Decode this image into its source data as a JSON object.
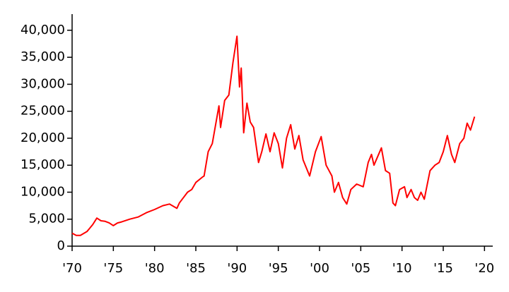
{
  "chart_data": {
    "type": "line",
    "x": [
      1970,
      1970.5,
      1971,
      1971.8,
      1972.5,
      1973.0,
      1973.5,
      1974.0,
      1974.5,
      1975.0,
      1975.5,
      1976,
      1977,
      1978,
      1979,
      1980,
      1981,
      1981.8,
      1982.7,
      1983,
      1984,
      1984.5,
      1985,
      1985.8,
      1986,
      1986.5,
      1987,
      1987.8,
      1988.0,
      1988.5,
      1989.0,
      1989.5,
      1989.99,
      1990.3,
      1990.5,
      1990.8,
      1991.2,
      1991.6,
      1992,
      1992.6,
      1993,
      1993.5,
      1994,
      1994.5,
      1995,
      1995.5,
      1996,
      1996.5,
      1997,
      1997.5,
      1998,
      1998.8,
      1999.5,
      2000.2,
      2000.8,
      2001.5,
      2001.8,
      2002.3,
      2002.8,
      2003.3,
      2003.8,
      2004.5,
      2005.3,
      2005.9,
      2006.3,
      2006.6,
      2007.5,
      2008.0,
      2008.5,
      2008.9,
      2009.2,
      2009.7,
      2010.3,
      2010.6,
      2011.1,
      2011.5,
      2011.9,
      2012.3,
      2012.7,
      2013.0,
      2013.4,
      2014.0,
      2014.5,
      2015.0,
      2015.5,
      2016.0,
      2016.4,
      2017.0,
      2017.5,
      2017.9,
      2018.3,
      2018.8
    ],
    "series": [
      {
        "color": "#ff0000",
        "values": [
          2400,
          2000,
          2000,
          2700,
          4000,
          5200,
          4700,
          4600,
          4300,
          3800,
          4300,
          4500,
          5000,
          5400,
          6200,
          6800,
          7500,
          7800,
          7000,
          8000,
          10000,
          10500,
          11800,
          12800,
          13000,
          17500,
          19000,
          26000,
          22000,
          27000,
          28000,
          34000,
          38900,
          29500,
          33000,
          21000,
          26500,
          23000,
          22000,
          15500,
          17500,
          20800,
          17500,
          21000,
          19000,
          14500,
          20000,
          22500,
          18000,
          20500,
          16000,
          13000,
          17500,
          20300,
          15000,
          13000,
          10000,
          11800,
          9000,
          7800,
          10500,
          11500,
          11000,
          15500,
          17000,
          15000,
          18200,
          14000,
          13500,
          8000,
          7500,
          10500,
          11000,
          9000,
          10500,
          9000,
          8500,
          10000,
          8700,
          11000,
          14000,
          15000,
          15500,
          17500,
          20500,
          17000,
          15500,
          19000,
          20000,
          22800,
          21500,
          24000
        ]
      }
    ],
    "xlim": [
      1970,
      2021
    ],
    "xticks": [
      {
        "value": 1970,
        "label": "'70"
      },
      {
        "value": 1975,
        "label": "'75"
      },
      {
        "value": 1980,
        "label": "'80"
      },
      {
        "value": 1985,
        "label": "'85"
      },
      {
        "value": 1990,
        "label": "'90"
      },
      {
        "value": 1995,
        "label": "'95"
      },
      {
        "value": 2000,
        "label": "'00"
      },
      {
        "value": 2005,
        "label": "'05"
      },
      {
        "value": 2010,
        "label": "'10"
      },
      {
        "value": 2015,
        "label": "'15"
      },
      {
        "value": 2020,
        "label": "'20"
      }
    ],
    "ylim": [
      0,
      43000
    ],
    "yticks": [
      0,
      {
        "value": 5000,
        "label": "5,000"
      },
      {
        "value": 10000,
        "label": "10,000"
      },
      {
        "value": 15000,
        "label": "15,000"
      },
      {
        "value": 20000,
        "label": "20,000"
      },
      {
        "value": 25000,
        "label": "25,000"
      },
      {
        "value": 30000,
        "label": "30,000"
      },
      {
        "value": 35000,
        "label": "35,000"
      },
      {
        "value": 40000,
        "label": "40,000"
      }
    ]
  }
}
